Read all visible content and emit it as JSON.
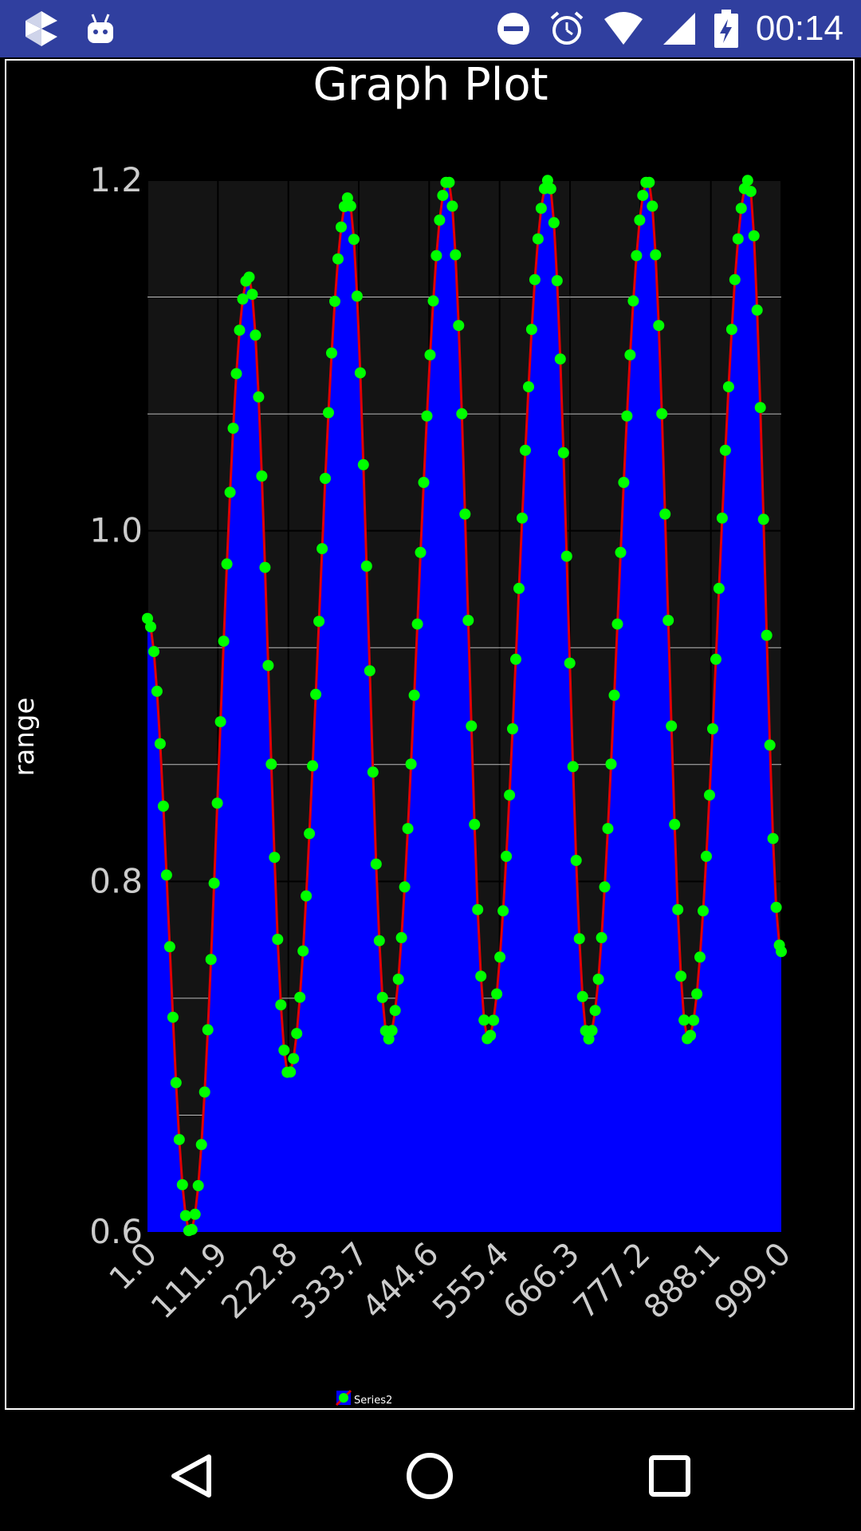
{
  "status_bar": {
    "time": "00:14",
    "icons": [
      "app-icon",
      "android-debug-icon",
      "do-not-disturb-icon",
      "alarm-icon",
      "wifi-icon",
      "signal-icon",
      "battery-charging-icon"
    ]
  },
  "chart_data": {
    "type": "line",
    "title": "Graph Plot",
    "xlabel": "",
    "ylabel": "range",
    "xlim": [
      1.0,
      999.0
    ],
    "ylim": [
      0.6,
      1.2
    ],
    "x_ticks": [
      "1.0",
      "111.9",
      "222.8",
      "333.7",
      "444.6",
      "555.4",
      "666.3",
      "777.2",
      "888.1",
      "999.0"
    ],
    "y_ticks": [
      "0.6",
      "0.8",
      "1.0",
      "1.2"
    ],
    "grid": true,
    "legend": "bottom-center",
    "point_step": 5,
    "series": [
      {
        "name": "Series2",
        "line_color": "#e00000",
        "marker_color": "#00ff00",
        "fill_color": "#0000ff",
        "x": [
          1,
          68,
          160,
          223,
          317,
          380,
          474,
          537,
          632,
          695,
          789,
          852,
          947,
          999
        ],
        "y": [
          0.95,
          0.6,
          1.145,
          0.69,
          1.19,
          0.71,
          1.2,
          0.71,
          1.2,
          0.71,
          1.2,
          0.71,
          1.2,
          0.76
        ]
      }
    ]
  },
  "colors": {
    "status_bar": "#303f9f",
    "plot_background": "#141414",
    "background": "#000000"
  },
  "nav_bar": {
    "buttons": [
      "back-icon",
      "home-icon",
      "recents-icon"
    ]
  }
}
